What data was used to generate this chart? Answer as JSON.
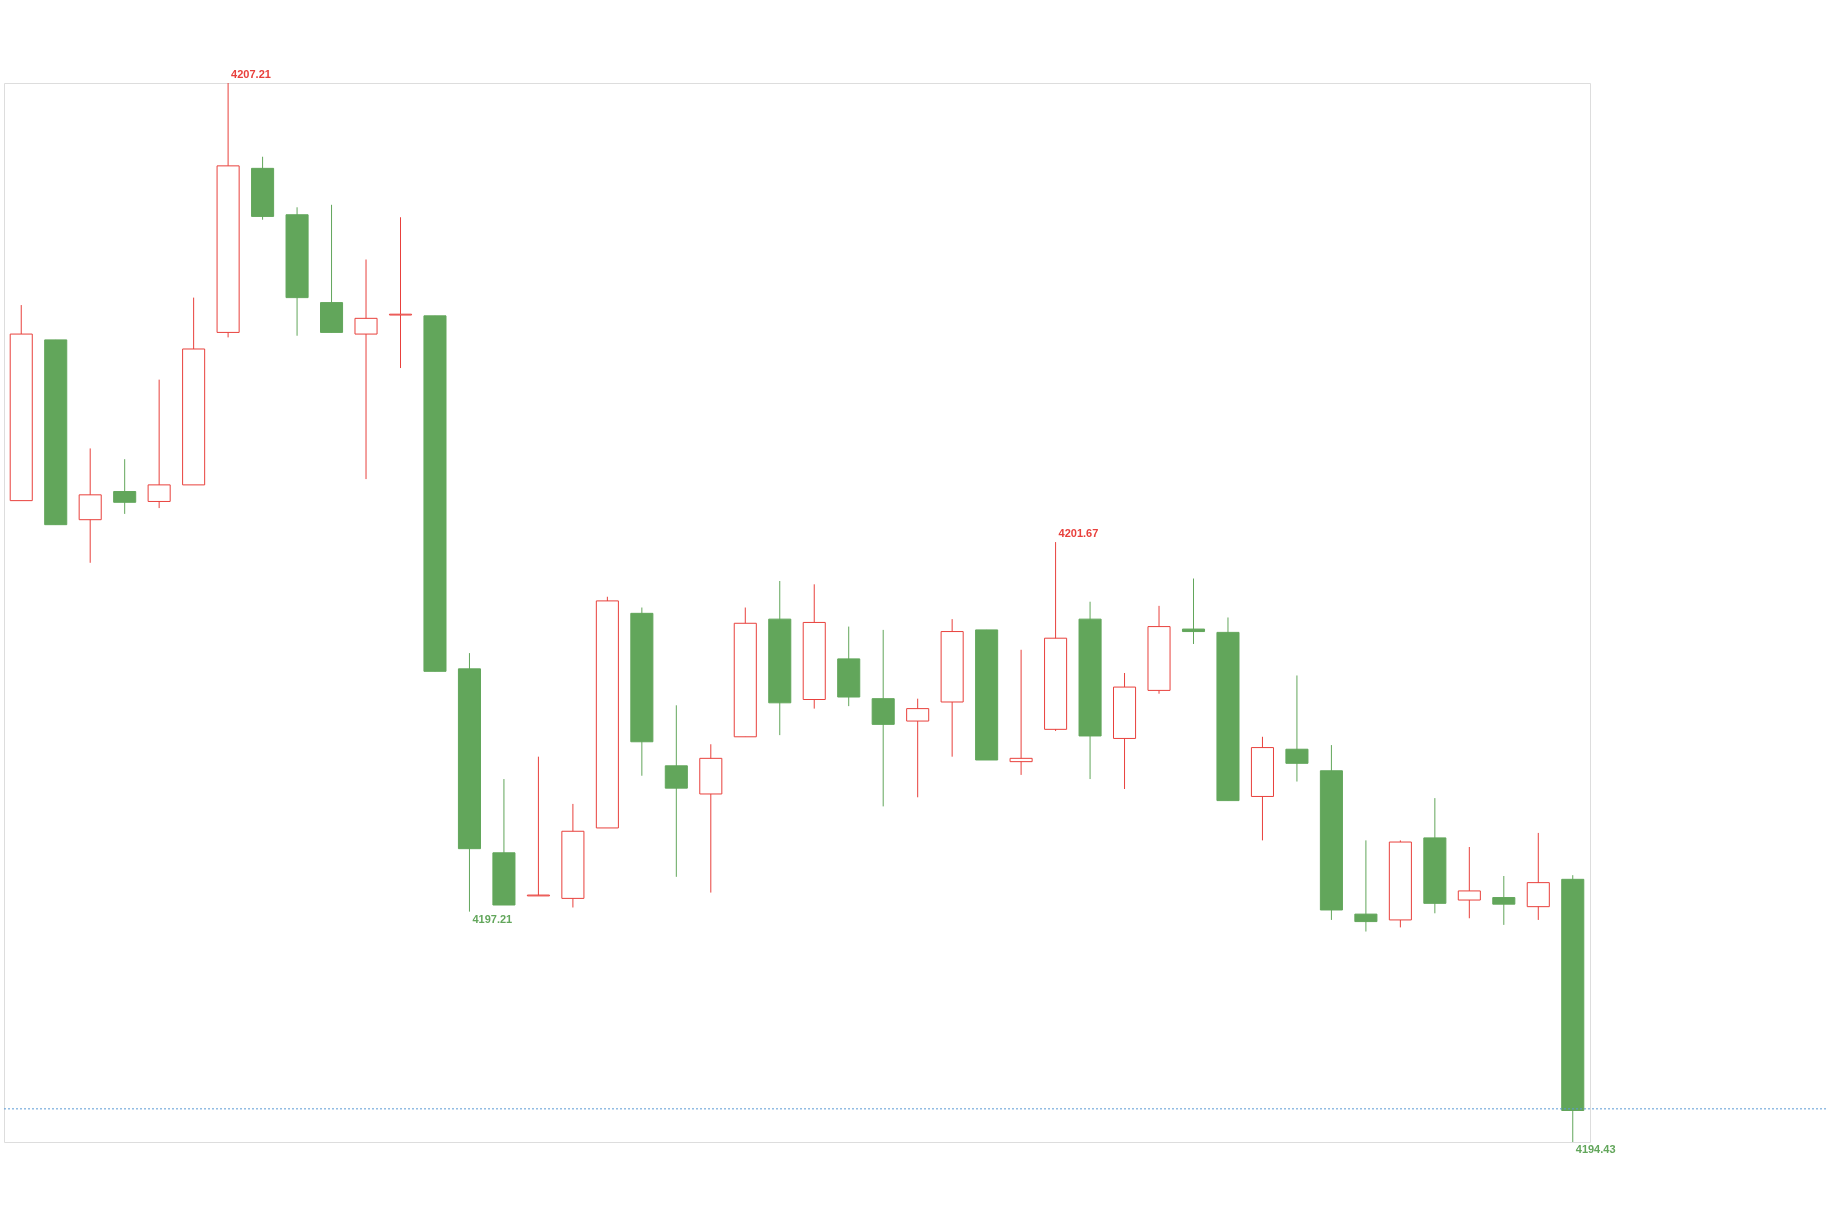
{
  "chart_data": {
    "type": "candlestick",
    "categories": [
      null,
      null,
      null,
      null,
      null,
      null,
      null,
      null,
      null,
      null,
      null,
      null,
      null,
      null,
      null,
      null,
      null,
      null,
      null,
      null,
      null,
      null,
      null,
      null,
      null,
      null,
      null,
      null,
      null,
      null,
      null,
      null,
      null,
      null,
      null,
      null,
      null,
      null,
      null,
      null,
      null,
      null,
      null,
      null,
      null,
      null
    ],
    "ohlc": [
      [
        4202.17,
        4204.53,
        4202.17,
        4204.18
      ],
      [
        4204.11,
        4204.11,
        4201.88,
        4201.88
      ],
      [
        4201.94,
        4202.8,
        4201.42,
        4202.24
      ],
      [
        4202.28,
        4202.67,
        4202.01,
        4202.15
      ],
      [
        4202.16,
        4203.63,
        4202.08,
        4202.36
      ],
      [
        4202.36,
        4204.62,
        4202.36,
        4204.0
      ],
      [
        4204.2,
        4207.21,
        4204.14,
        4206.21
      ],
      [
        4206.18,
        4206.32,
        4205.56,
        4205.6
      ],
      [
        4205.62,
        4205.71,
        4204.16,
        4204.62
      ],
      [
        4204.56,
        4205.74,
        4204.2,
        4204.2
      ],
      [
        4204.18,
        4205.08,
        4202.43,
        4204.37
      ],
      [
        4204.41,
        4205.59,
        4203.77,
        4204.42
      ],
      [
        4204.4,
        4204.4,
        4200.11,
        4200.11
      ],
      [
        4200.14,
        4200.33,
        4197.21,
        4197.97
      ],
      [
        4197.92,
        4198.81,
        4197.29,
        4197.29
      ],
      [
        4197.4,
        4199.08,
        4197.4,
        4197.41
      ],
      [
        4197.37,
        4198.51,
        4197.26,
        4198.18
      ],
      [
        4198.22,
        4201.01,
        4198.22,
        4200.96
      ],
      [
        4200.81,
        4200.88,
        4198.85,
        4199.26
      ],
      [
        4198.97,
        4199.7,
        4197.63,
        4198.7
      ],
      [
        4198.63,
        4199.23,
        4197.44,
        4199.06
      ],
      [
        4199.32,
        4200.88,
        4199.32,
        4200.69
      ],
      [
        4200.74,
        4201.2,
        4199.34,
        4199.73
      ],
      [
        4199.77,
        4201.16,
        4199.66,
        4200.7
      ],
      [
        4200.26,
        4200.65,
        4199.69,
        4199.8
      ],
      [
        4199.78,
        4200.61,
        4198.48,
        4199.47
      ],
      [
        4199.51,
        4199.78,
        4198.59,
        4199.66
      ],
      [
        4199.74,
        4200.74,
        4199.08,
        4200.59
      ],
      [
        4200.61,
        4200.61,
        4199.04,
        4199.04
      ],
      [
        4199.02,
        4200.37,
        4198.86,
        4199.06
      ],
      [
        4199.41,
        4201.67,
        4199.39,
        4200.51
      ],
      [
        4200.74,
        4200.95,
        4198.81,
        4199.33
      ],
      [
        4199.3,
        4200.09,
        4198.69,
        4199.92
      ],
      [
        4199.88,
        4200.9,
        4199.84,
        4200.65
      ],
      [
        4200.62,
        4201.23,
        4200.44,
        4200.59
      ],
      [
        4200.58,
        4200.76,
        4198.55,
        4198.55
      ],
      [
        4198.6,
        4199.32,
        4198.07,
        4199.19
      ],
      [
        4199.17,
        4200.06,
        4198.78,
        4199.0
      ],
      [
        4198.91,
        4199.22,
        4197.11,
        4197.23
      ],
      [
        4197.18,
        4198.07,
        4196.97,
        4197.09
      ],
      [
        4197.11,
        4198.07,
        4197.02,
        4198.05
      ],
      [
        4198.1,
        4198.58,
        4197.19,
        4197.31
      ],
      [
        4197.35,
        4197.99,
        4197.13,
        4197.46
      ],
      [
        4197.38,
        4197.64,
        4197.05,
        4197.3
      ],
      [
        4197.27,
        4198.16,
        4197.11,
        4197.56
      ],
      [
        4197.6,
        4197.65,
        4194.43,
        4194.81
      ]
    ],
    "colors": [
      "#e8403c",
      "#62a65b",
      "#e8403c",
      "#62a65b",
      "#e8403c",
      "#e8403c",
      "#e8403c",
      "#62a65b",
      "#62a65b",
      "#62a65b",
      "#e8403c",
      "#e8403c",
      "#62a65b",
      "#62a65b",
      "#62a65b",
      "#e8403c",
      "#e8403c",
      "#e8403c",
      "#62a65b",
      "#62a65b",
      "#e8403c",
      "#e8403c",
      "#62a65b",
      "#e8403c",
      "#62a65b",
      "#62a65b",
      "#e8403c",
      "#e8403c",
      "#62a65b",
      "#e8403c",
      "#e8403c",
      "#62a65b",
      "#e8403c",
      "#e8403c",
      "#62a65b",
      "#62a65b",
      "#e8403c",
      "#62a65b",
      "#62a65b",
      "#62a65b",
      "#e8403c",
      "#62a65b",
      "#e8403c",
      "#62a65b",
      "#e8403c",
      "#62a65b"
    ],
    "ylim": [
      4194.43,
      4207.21
    ],
    "tick_labels": false,
    "grid": false,
    "ref_lines": [
      {
        "axis": "y",
        "value": 4194.83,
        "color": "#5b9bd5",
        "line_style": "dotted"
      }
    ],
    "annotations": [
      "4207.21",
      "4201.67",
      "4197.21",
      "4194.43"
    ]
  }
}
